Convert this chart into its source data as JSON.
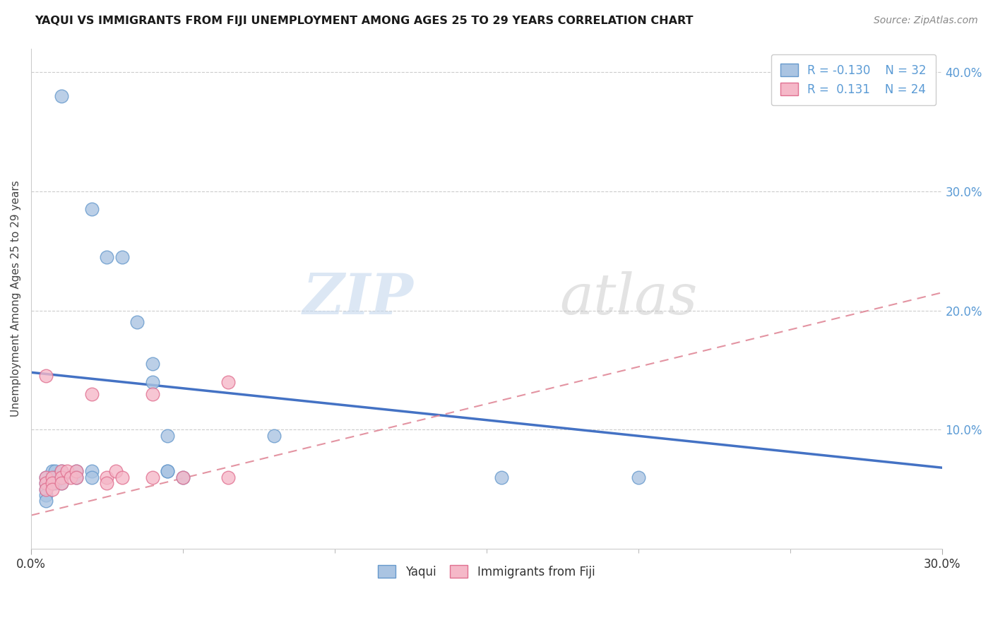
{
  "title": "YAQUI VS IMMIGRANTS FROM FIJI UNEMPLOYMENT AMONG AGES 25 TO 29 YEARS CORRELATION CHART",
  "source": "Source: ZipAtlas.com",
  "ylabel": "Unemployment Among Ages 25 to 29 years",
  "xlim": [
    0.0,
    0.3
  ],
  "ylim": [
    0.0,
    0.42
  ],
  "ytick_vals": [
    0.1,
    0.2,
    0.3,
    0.4
  ],
  "ytick_labels": [
    "10.0%",
    "20.0%",
    "30.0%",
    "40.0%"
  ],
  "yaqui_color": "#aac4e2",
  "fiji_color": "#f5b8c8",
  "yaqui_edge_color": "#6699cc",
  "fiji_edge_color": "#e07090",
  "yaqui_line_color": "#4472c4",
  "fiji_line_color": "#e08898",
  "background_color": "#ffffff",
  "watermark_zip": "ZIP",
  "watermark_atlas": "atlas",
  "yaqui_x": [
    0.01,
    0.02,
    0.025,
    0.03,
    0.035,
    0.04,
    0.04,
    0.045,
    0.045,
    0.05,
    0.005,
    0.005,
    0.005,
    0.005,
    0.005,
    0.007,
    0.007,
    0.007,
    0.008,
    0.008,
    0.008,
    0.01,
    0.01,
    0.01,
    0.015,
    0.015,
    0.02,
    0.02,
    0.045,
    0.08,
    0.155,
    0.2
  ],
  "yaqui_y": [
    0.38,
    0.285,
    0.245,
    0.245,
    0.19,
    0.155,
    0.14,
    0.095,
    0.065,
    0.06,
    0.06,
    0.055,
    0.05,
    0.045,
    0.04,
    0.065,
    0.06,
    0.055,
    0.065,
    0.06,
    0.055,
    0.065,
    0.06,
    0.055,
    0.065,
    0.06,
    0.065,
    0.06,
    0.065,
    0.095,
    0.06,
    0.06
  ],
  "fiji_x": [
    0.005,
    0.005,
    0.005,
    0.005,
    0.007,
    0.007,
    0.007,
    0.01,
    0.01,
    0.01,
    0.012,
    0.013,
    0.015,
    0.015,
    0.02,
    0.025,
    0.025,
    0.028,
    0.03,
    0.04,
    0.04,
    0.05,
    0.065,
    0.065
  ],
  "fiji_y": [
    0.145,
    0.06,
    0.055,
    0.05,
    0.06,
    0.055,
    0.05,
    0.065,
    0.06,
    0.055,
    0.065,
    0.06,
    0.065,
    0.06,
    0.13,
    0.06,
    0.055,
    0.065,
    0.06,
    0.13,
    0.06,
    0.06,
    0.14,
    0.06
  ]
}
